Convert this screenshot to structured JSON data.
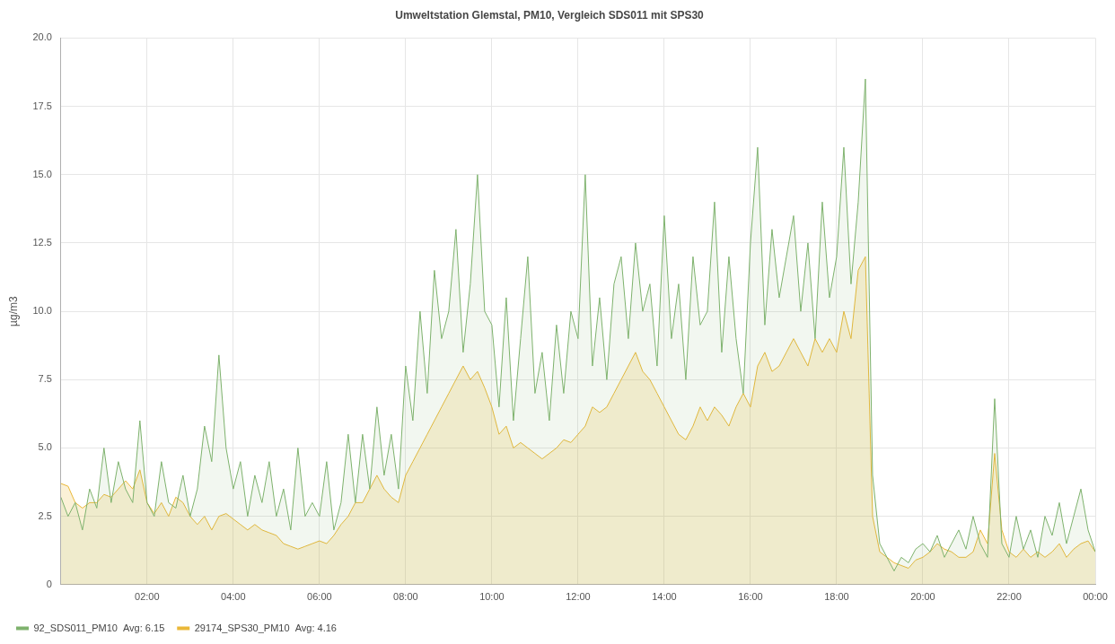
{
  "chart_data": {
    "type": "line",
    "title": "Umweltstation Glemstal, PM10, Vergleich SDS011 mit SPS30",
    "y_label": "µg/m3",
    "x": [
      0,
      10,
      20,
      30,
      40,
      50,
      60,
      70,
      80,
      90,
      100,
      110,
      120,
      130,
      140,
      150,
      160,
      170,
      180,
      190,
      200,
      210,
      220,
      230,
      240,
      250,
      260,
      270,
      280,
      290,
      300,
      310,
      320,
      330,
      340,
      350,
      360,
      370,
      380,
      390,
      400,
      410,
      420,
      430,
      440,
      450,
      460,
      470,
      480,
      490,
      500,
      510,
      520,
      530,
      540,
      550,
      560,
      570,
      580,
      590,
      600,
      610,
      620,
      630,
      640,
      650,
      660,
      670,
      680,
      690,
      700,
      710,
      720,
      730,
      740,
      750,
      760,
      770,
      780,
      790,
      800,
      810,
      820,
      830,
      840,
      850,
      860,
      870,
      880,
      890,
      900,
      910,
      920,
      930,
      940,
      950,
      960,
      970,
      980,
      990,
      1000,
      1010,
      1020,
      1030,
      1040,
      1050,
      1060,
      1070,
      1080,
      1090,
      1100,
      1110,
      1120,
      1130,
      1140,
      1150,
      1160,
      1170,
      1180,
      1190,
      1200,
      1210,
      1220,
      1230,
      1240,
      1250,
      1260,
      1270,
      1280,
      1290,
      1300,
      1310,
      1320,
      1330,
      1340,
      1350,
      1360,
      1370,
      1380,
      1390,
      1400,
      1410,
      1420,
      1430,
      1440
    ],
    "xlim": [
      0,
      1440
    ],
    "xticks": [
      {
        "value": 120,
        "label": "02:00"
      },
      {
        "value": 240,
        "label": "04:00"
      },
      {
        "value": 360,
        "label": "06:00"
      },
      {
        "value": 480,
        "label": "08:00"
      },
      {
        "value": 600,
        "label": "10:00"
      },
      {
        "value": 720,
        "label": "12:00"
      },
      {
        "value": 840,
        "label": "14:00"
      },
      {
        "value": 960,
        "label": "16:00"
      },
      {
        "value": 1080,
        "label": "18:00"
      },
      {
        "value": 1200,
        "label": "20:00"
      },
      {
        "value": 1320,
        "label": "22:00"
      },
      {
        "value": 1440,
        "label": "00:00"
      }
    ],
    "ylim": [
      0,
      20
    ],
    "yticks": [
      0,
      2.5,
      {
        "value": 5,
        "label": "5.0"
      },
      7.5,
      {
        "value": 10,
        "label": "10.0"
      },
      12.5,
      {
        "value": 15,
        "label": "15.0"
      },
      17.5,
      {
        "value": 20,
        "label": "20.0"
      }
    ],
    "grid": true,
    "legend": "bottom-left",
    "series": [
      {
        "name": "92_SDS011_PM10  Avg: 6.15",
        "color": "#7eb26d",
        "values": [
          3.2,
          2.5,
          3.0,
          2.0,
          3.5,
          2.8,
          5.0,
          3.0,
          4.5,
          3.5,
          3.0,
          6.0,
          3.0,
          2.5,
          4.5,
          3.0,
          2.8,
          4.0,
          2.5,
          3.5,
          5.8,
          4.5,
          8.4,
          5.0,
          3.5,
          4.5,
          2.5,
          4.0,
          3.0,
          4.5,
          2.5,
          3.5,
          2.0,
          5.0,
          2.5,
          3.0,
          2.5,
          4.5,
          2.0,
          3.0,
          5.5,
          3.0,
          5.5,
          3.5,
          6.5,
          4.0,
          5.5,
          3.5,
          8.0,
          6.0,
          10.0,
          7.0,
          11.5,
          9.0,
          10.0,
          13.0,
          8.5,
          11.0,
          15.0,
          10.0,
          9.5,
          6.5,
          10.5,
          6.0,
          9.0,
          12.0,
          7.0,
          8.5,
          6.0,
          9.5,
          7.0,
          10.0,
          9.0,
          15.0,
          8.0,
          10.5,
          7.5,
          11.0,
          12.0,
          9.0,
          12.5,
          10.0,
          11.0,
          8.0,
          13.5,
          9.0,
          11.0,
          7.5,
          12.0,
          9.5,
          10.0,
          14.0,
          8.5,
          12.0,
          9.0,
          7.0,
          12.5,
          16.0,
          9.5,
          13.0,
          10.5,
          12.0,
          13.5,
          10.0,
          12.5,
          9.0,
          14.0,
          10.5,
          12.0,
          16.0,
          11.0,
          14.0,
          18.5,
          4.0,
          1.5,
          1.0,
          0.5,
          1.0,
          0.8,
          1.3,
          1.5,
          1.2,
          1.8,
          1.0,
          1.5,
          2.0,
          1.3,
          2.5,
          1.5,
          1.0,
          6.8,
          1.5,
          1.0,
          2.5,
          1.3,
          2.0,
          1.0,
          2.5,
          1.8,
          3.0,
          1.5,
          2.5,
          3.5,
          2.0,
          1.2
        ]
      },
      {
        "name": "29174_SPS30_PM10  Avg: 4.16",
        "color": "#eab839",
        "values": [
          3.7,
          3.6,
          3.0,
          2.8,
          3.0,
          3.0,
          3.3,
          3.2,
          3.5,
          3.8,
          3.5,
          4.2,
          3.0,
          2.6,
          3.0,
          2.5,
          3.2,
          3.0,
          2.5,
          2.2,
          2.5,
          2.0,
          2.5,
          2.6,
          2.4,
          2.2,
          2.0,
          2.2,
          2.0,
          1.9,
          1.8,
          1.5,
          1.4,
          1.3,
          1.4,
          1.5,
          1.6,
          1.5,
          1.8,
          2.2,
          2.5,
          3.0,
          3.0,
          3.5,
          4.0,
          3.5,
          3.2,
          3.0,
          4.0,
          4.5,
          5.0,
          5.5,
          6.0,
          6.5,
          7.0,
          7.5,
          8.0,
          7.5,
          7.8,
          7.2,
          6.5,
          5.5,
          5.8,
          5.0,
          5.2,
          5.0,
          4.8,
          4.6,
          4.8,
          5.0,
          5.3,
          5.2,
          5.5,
          5.8,
          6.5,
          6.3,
          6.5,
          7.0,
          7.5,
          8.0,
          8.5,
          7.8,
          7.5,
          7.0,
          6.5,
          6.0,
          5.5,
          5.3,
          5.8,
          6.5,
          6.0,
          6.5,
          6.2,
          5.8,
          6.5,
          7.0,
          6.5,
          8.0,
          8.5,
          7.8,
          8.0,
          8.5,
          9.0,
          8.5,
          8.0,
          9.0,
          8.5,
          9.0,
          8.5,
          10.0,
          9.0,
          11.5,
          12.0,
          2.5,
          1.2,
          1.0,
          0.8,
          0.7,
          0.6,
          0.9,
          1.0,
          1.2,
          1.5,
          1.3,
          1.2,
          1.0,
          1.0,
          1.2,
          2.0,
          1.5,
          4.8,
          2.0,
          1.2,
          1.0,
          1.3,
          1.0,
          1.2,
          1.0,
          1.2,
          1.5,
          1.0,
          1.3,
          1.5,
          1.6,
          1.2
        ]
      }
    ]
  }
}
